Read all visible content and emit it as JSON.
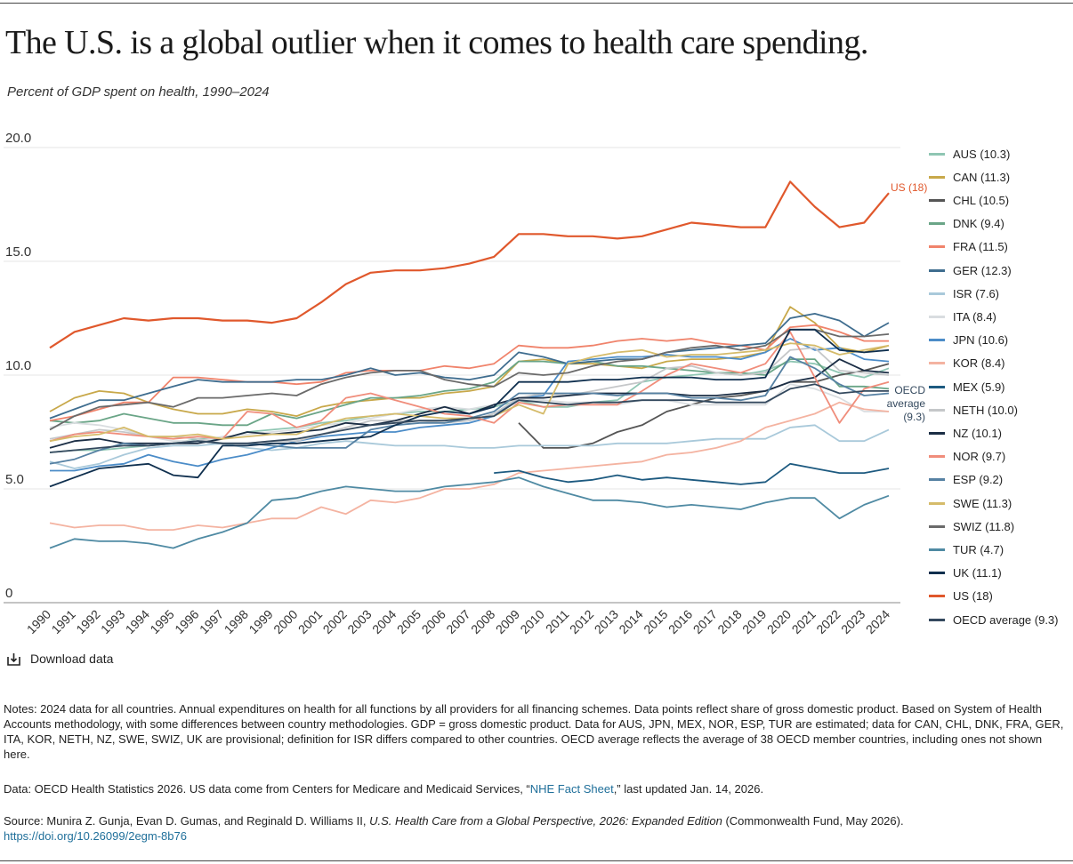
{
  "header": {
    "title": "The U.S. is a global outlier when it comes to health care spending.",
    "subtitle": "Percent of GDP spent on health, 1990–2024"
  },
  "chart_data": {
    "type": "line",
    "title": "The U.S. is a global outlier when it comes to health care spending.",
    "subtitle": "Percent of GDP spent on health, 1990–2024",
    "xlabel": "",
    "ylabel": "",
    "ylim": [
      0,
      20
    ],
    "yticks": [
      "0",
      "5.0",
      "10.0",
      "15.0",
      "20.0"
    ],
    "ytick_values": [
      0,
      5,
      10,
      15,
      20
    ],
    "grid": "horizontal",
    "legend_position": "right",
    "x": [
      1990,
      1991,
      1992,
      1993,
      1994,
      1995,
      1996,
      1997,
      1998,
      1999,
      2000,
      2001,
      2002,
      2003,
      2004,
      2005,
      2006,
      2007,
      2008,
      2009,
      2010,
      2011,
      2012,
      2013,
      2014,
      2015,
      2016,
      2017,
      2018,
      2019,
      2020,
      2021,
      2022,
      2023,
      2024
    ],
    "series": [
      {
        "name": "AUS (10.3)",
        "color": "#8fc6b3",
        "values": [
          6.6,
          6.7,
          6.7,
          6.8,
          6.9,
          7.0,
          7.2,
          7.2,
          7.5,
          7.6,
          7.7,
          7.9,
          8.0,
          8.2,
          8.3,
          8.4,
          8.4,
          8.5,
          8.6,
          8.9,
          8.6,
          8.6,
          8.8,
          8.9,
          9.7,
          9.9,
          10.0,
          10.1,
          10.0,
          10.2,
          10.6,
          10.5,
          10.1,
          9.9,
          10.3
        ]
      },
      {
        "name": "CAN (11.3)",
        "color": "#c8a84a",
        "values": [
          8.4,
          9.0,
          9.3,
          9.2,
          8.8,
          8.5,
          8.3,
          8.3,
          8.5,
          8.4,
          8.2,
          8.6,
          8.8,
          8.9,
          9.0,
          9.0,
          9.2,
          9.3,
          9.5,
          10.6,
          10.7,
          10.5,
          10.5,
          10.4,
          10.3,
          10.6,
          10.7,
          10.7,
          10.8,
          11.0,
          13.0,
          12.3,
          11.2,
          11.0,
          11.3
        ]
      },
      {
        "name": "CHL (10.5)",
        "color": "#555555",
        "values": [
          null,
          null,
          null,
          null,
          null,
          null,
          null,
          null,
          null,
          null,
          null,
          null,
          null,
          null,
          null,
          null,
          null,
          null,
          null,
          7.9,
          6.8,
          6.8,
          7.0,
          7.5,
          7.8,
          8.4,
          8.7,
          9.0,
          9.1,
          9.3,
          9.7,
          9.7,
          10.0,
          10.2,
          10.5
        ]
      },
      {
        "name": "DNK (9.4)",
        "color": "#6aa587",
        "values": [
          8.0,
          7.9,
          8.0,
          8.3,
          8.1,
          7.9,
          7.9,
          7.8,
          7.8,
          8.3,
          8.1,
          8.4,
          8.7,
          9.0,
          9.0,
          9.1,
          9.3,
          9.4,
          9.7,
          10.6,
          10.6,
          10.5,
          10.6,
          10.4,
          10.4,
          10.3,
          10.2,
          10.1,
          10.1,
          10.0,
          10.7,
          10.7,
          9.5,
          9.5,
          9.4
        ]
      },
      {
        "name": "FRA (11.5)",
        "color": "#f0836b",
        "values": [
          8.0,
          8.2,
          8.5,
          8.8,
          8.8,
          9.9,
          9.9,
          9.8,
          9.7,
          9.7,
          9.6,
          9.7,
          10.1,
          10.2,
          10.2,
          10.2,
          10.4,
          10.3,
          10.5,
          11.3,
          11.2,
          11.2,
          11.3,
          11.5,
          11.6,
          11.5,
          11.6,
          11.4,
          11.3,
          11.1,
          12.1,
          12.2,
          11.9,
          11.5,
          11.5
        ]
      },
      {
        "name": "GER (12.3)",
        "color": "#3f6d8f",
        "values": [
          8.1,
          8.5,
          8.9,
          8.9,
          9.2,
          9.5,
          9.8,
          9.7,
          9.7,
          9.7,
          9.8,
          9.8,
          10.0,
          10.3,
          10.0,
          10.1,
          9.9,
          9.8,
          10.0,
          11.0,
          10.8,
          10.5,
          10.6,
          10.7,
          10.7,
          11.0,
          11.1,
          11.2,
          11.3,
          11.4,
          12.5,
          12.7,
          12.4,
          11.7,
          12.3
        ]
      },
      {
        "name": "ISR (7.6)",
        "color": "#a9c9da",
        "values": [
          6.2,
          5.9,
          6.1,
          6.5,
          6.8,
          6.9,
          6.9,
          7.0,
          6.8,
          6.7,
          6.8,
          7.0,
          7.1,
          7.0,
          6.9,
          6.9,
          6.9,
          6.8,
          6.8,
          6.9,
          6.9,
          6.9,
          6.9,
          7.0,
          7.0,
          7.0,
          7.1,
          7.2,
          7.2,
          7.2,
          7.7,
          7.8,
          7.1,
          7.1,
          7.6
        ]
      },
      {
        "name": "ITA (8.4)",
        "color": "#d9dde0",
        "values": [
          7.7,
          7.9,
          7.8,
          7.6,
          7.3,
          7.1,
          7.1,
          7.3,
          7.4,
          7.5,
          7.6,
          7.8,
          7.9,
          8.1,
          8.3,
          8.5,
          8.6,
          8.5,
          8.7,
          8.9,
          8.9,
          8.8,
          8.8,
          8.7,
          8.9,
          8.9,
          8.7,
          8.7,
          8.7,
          8.7,
          9.6,
          9.4,
          9.0,
          8.4,
          8.4
        ]
      },
      {
        "name": "JPN (10.6)",
        "color": "#4b8cc8",
        "values": [
          5.8,
          5.8,
          6.0,
          6.1,
          6.5,
          6.2,
          6.0,
          6.3,
          6.5,
          6.8,
          7.1,
          7.3,
          7.4,
          7.5,
          7.5,
          7.7,
          7.8,
          7.9,
          8.2,
          9.0,
          9.1,
          10.6,
          10.7,
          10.8,
          10.8,
          10.9,
          10.8,
          10.8,
          10.7,
          11.0,
          11.6,
          11.1,
          11.2,
          10.7,
          10.6
        ]
      },
      {
        "name": "KOR (8.4)",
        "color": "#f4b3a1",
        "values": [
          3.5,
          3.3,
          3.4,
          3.4,
          3.2,
          3.2,
          3.4,
          3.3,
          3.5,
          3.7,
          3.7,
          4.2,
          3.9,
          4.5,
          4.4,
          4.6,
          5.0,
          5.0,
          5.2,
          5.7,
          5.8,
          5.9,
          6.0,
          6.1,
          6.2,
          6.5,
          6.6,
          6.8,
          7.1,
          7.7,
          8.0,
          8.3,
          8.8,
          8.5,
          8.4
        ]
      },
      {
        "name": "MEX (5.9)",
        "color": "#1d5a80",
        "values": [
          null,
          null,
          null,
          null,
          null,
          null,
          null,
          null,
          null,
          null,
          null,
          null,
          null,
          null,
          null,
          null,
          null,
          null,
          5.7,
          5.8,
          5.5,
          5.3,
          5.4,
          5.6,
          5.4,
          5.5,
          5.4,
          5.3,
          5.2,
          5.3,
          6.1,
          5.9,
          5.7,
          5.7,
          5.9
        ]
      },
      {
        "name": "NETH (10.0)",
        "color": "#c5c7c9",
        "values": [
          7.2,
          7.4,
          7.6,
          7.5,
          7.3,
          7.3,
          7.2,
          7.0,
          7.0,
          7.1,
          7.1,
          7.4,
          7.7,
          8.0,
          8.0,
          8.0,
          7.9,
          8.0,
          8.3,
          9.0,
          9.2,
          9.1,
          9.3,
          9.5,
          9.7,
          10.3,
          10.4,
          10.1,
          10.0,
          10.1,
          11.1,
          11.2,
          10.2,
          10.1,
          10.0
        ]
      },
      {
        "name": "NZ (10.1)",
        "color": "#1b2e45",
        "values": [
          6.8,
          7.1,
          7.2,
          7.0,
          7.0,
          7.0,
          7.0,
          7.2,
          7.5,
          7.4,
          7.5,
          7.6,
          7.9,
          7.8,
          8.0,
          8.3,
          8.6,
          8.3,
          8.7,
          9.0,
          9.0,
          9.1,
          9.2,
          9.2,
          9.2,
          9.2,
          9.1,
          9.1,
          9.2,
          9.3,
          9.7,
          9.9,
          10.7,
          10.2,
          10.1
        ]
      },
      {
        "name": "NOR (9.7)",
        "color": "#f08d7b",
        "values": [
          7.1,
          7.4,
          7.5,
          7.4,
          7.3,
          7.2,
          7.3,
          7.2,
          8.4,
          8.3,
          7.7,
          8.0,
          9.0,
          9.2,
          8.9,
          8.6,
          8.3,
          8.2,
          7.9,
          8.8,
          8.6,
          8.7,
          8.7,
          8.7,
          9.3,
          10.0,
          10.5,
          10.3,
          10.1,
          10.5,
          11.9,
          9.9,
          7.9,
          9.4,
          9.7
        ]
      },
      {
        "name": "ESP (9.2)",
        "color": "#5681a3",
        "values": [
          6.1,
          6.3,
          6.7,
          7.0,
          6.9,
          7.0,
          7.1,
          7.0,
          7.0,
          6.9,
          6.8,
          6.8,
          6.8,
          7.6,
          7.8,
          7.9,
          7.9,
          8.1,
          8.4,
          9.2,
          9.2,
          9.2,
          9.2,
          9.1,
          9.2,
          9.2,
          9.0,
          9.0,
          8.9,
          9.1,
          10.8,
          10.3,
          9.6,
          9.1,
          9.2
        ]
      },
      {
        "name": "SWE (11.3)",
        "color": "#d5bb6a",
        "values": [
          7.1,
          7.3,
          7.4,
          7.7,
          7.3,
          7.3,
          7.4,
          7.2,
          7.3,
          7.4,
          7.4,
          7.8,
          8.1,
          8.2,
          8.3,
          8.2,
          8.1,
          8.1,
          8.2,
          8.7,
          8.3,
          10.5,
          10.8,
          11.0,
          11.1,
          10.8,
          10.9,
          10.9,
          11.0,
          11.1,
          11.4,
          11.3,
          10.9,
          11.1,
          11.3
        ]
      },
      {
        "name": "SWIZ (11.8)",
        "color": "#6a6a6a",
        "values": [
          7.6,
          8.2,
          8.6,
          8.7,
          8.8,
          8.6,
          9.0,
          9.0,
          9.1,
          9.2,
          9.1,
          9.6,
          9.9,
          10.1,
          10.2,
          10.2,
          9.8,
          9.6,
          9.5,
          10.1,
          10.0,
          10.1,
          10.4,
          10.6,
          10.7,
          11.0,
          11.2,
          11.3,
          11.1,
          11.3,
          12.0,
          12.0,
          11.7,
          11.7,
          11.8
        ]
      },
      {
        "name": "TUR (4.7)",
        "color": "#4f8aa3",
        "values": [
          2.4,
          2.8,
          2.7,
          2.7,
          2.6,
          2.4,
          2.8,
          3.1,
          3.5,
          4.5,
          4.6,
          4.9,
          5.1,
          5.0,
          4.9,
          4.9,
          5.1,
          5.2,
          5.3,
          5.5,
          5.1,
          4.8,
          4.5,
          4.5,
          4.4,
          4.2,
          4.3,
          4.2,
          4.1,
          4.4,
          4.6,
          4.6,
          3.7,
          4.3,
          4.7
        ]
      },
      {
        "name": "UK (11.1)",
        "color": "#0f2f4e",
        "values": [
          5.1,
          5.5,
          5.9,
          6.0,
          6.1,
          5.6,
          5.5,
          6.9,
          6.9,
          7.0,
          7.0,
          7.1,
          7.2,
          7.3,
          7.8,
          8.2,
          8.4,
          8.3,
          8.6,
          9.7,
          9.7,
          9.7,
          9.8,
          9.8,
          9.9,
          9.9,
          9.9,
          9.8,
          9.8,
          9.9,
          12.0,
          12.0,
          11.1,
          11.0,
          11.1
        ]
      },
      {
        "name": "US (18)",
        "color": "#e0582c",
        "values": [
          11.2,
          11.9,
          12.2,
          12.5,
          12.4,
          12.5,
          12.5,
          12.4,
          12.4,
          12.3,
          12.5,
          13.2,
          14.0,
          14.5,
          14.6,
          14.6,
          14.7,
          14.9,
          15.2,
          16.2,
          16.2,
          16.1,
          16.1,
          16.0,
          16.1,
          16.4,
          16.7,
          16.6,
          16.5,
          16.5,
          18.5,
          17.4,
          16.5,
          16.7,
          18.0
        ]
      },
      {
        "name": "OECD average (9.3)",
        "color": "#34495e",
        "values": [
          6.6,
          6.7,
          6.8,
          6.9,
          6.9,
          7.0,
          7.1,
          7.0,
          7.0,
          7.1,
          7.2,
          7.4,
          7.6,
          7.8,
          7.9,
          8.0,
          8.0,
          8.1,
          8.2,
          8.9,
          8.8,
          8.7,
          8.8,
          8.8,
          8.9,
          8.9,
          8.9,
          8.8,
          8.8,
          8.8,
          9.4,
          9.6,
          9.2,
          9.3,
          9.3
        ]
      }
    ],
    "end_labels": {
      "us": "US (18)",
      "oecd_line1": "OECD",
      "oecd_line2": "average",
      "oecd_line3": "(9.3)"
    }
  },
  "actions": {
    "download_label": "Download data"
  },
  "footer": {
    "notes": "Notes: 2024 data for all countries. Annual expenditures on health for all functions by all providers for all financing schemes. Data points reflect share of gross domestic product. Based on System of Health Accounts methodology, with some differences between country methodologies. GDP = gross domestic product. Data for AUS, JPN, MEX, NOR, ESP, TUR are estimated; data for CAN, CHL, DNK, FRA, GER, ITA, KOR, NETH, NZ, SWE, SWIZ, UK are provisional; definition for ISR differs compared to other countries. OECD average reflects the average of 38 OECD member countries, including ones not shown here.",
    "data_prefix": "Data: OECD Health Statistics 2026. US data come from Centers for Medicare and Medicaid Services, “",
    "data_link": "NHE Fact Sheet",
    "data_suffix": ",” last updated Jan. 14, 2026.",
    "source_prefix": "Source: Munira Z. Gunja, Evan D. Gumas, and Reginald D. Williams II, ",
    "source_title": "U.S. Health Care from a Global Perspective, 2026: Expanded Edition",
    "source_suffix": " (Commonwealth Fund, May 2026).",
    "doi": "https://doi.org/10.26099/2egm-8b76"
  }
}
